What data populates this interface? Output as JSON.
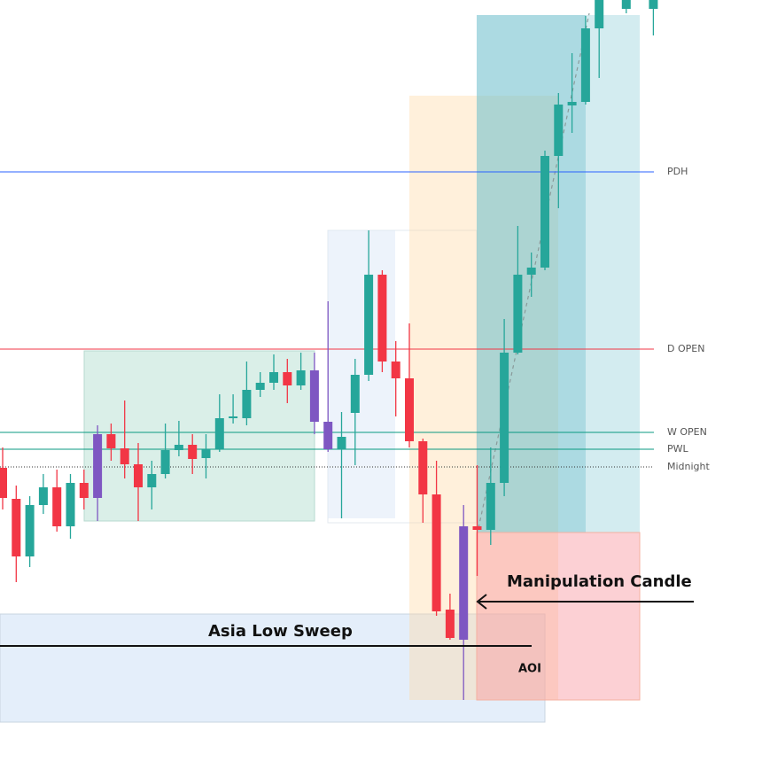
{
  "chart_data": {
    "type": "candlestick",
    "ylim": [
      0,
      860
    ],
    "open": [
      332,
      297,
      232,
      290,
      310,
      266,
      315,
      298,
      370,
      354,
      336,
      310,
      325,
      352,
      358,
      343,
      353,
      388,
      388,
      420,
      428,
      440,
      425,
      442,
      384,
      353,
      394,
      437,
      550,
      452,
      433,
      362,
      302,
      172,
      138,
      266,
      262,
      315,
      462,
      550,
      558,
      684,
      741,
      745,
      828,
      null,
      850,
      null,
      850
    ],
    "high": [
      355,
      312,
      300,
      325,
      330,
      325,
      330,
      380,
      382,
      408,
      360,
      340,
      382,
      385,
      370,
      370,
      415,
      415,
      452,
      440,
      460,
      455,
      462,
      462,
      520,
      395,
      455,
      600,
      555,
      475,
      495,
      365,
      340,
      190,
      290,
      335,
      355,
      500,
      605,
      575,
      690,
      755,
      800,
      842,
      860,
      null,
      860,
      null,
      860
    ],
    "low": [
      285,
      203,
      220,
      280,
      260,
      252,
      285,
      272,
      340,
      320,
      272,
      285,
      320,
      345,
      325,
      320,
      350,
      382,
      380,
      412,
      420,
      405,
      420,
      370,
      350,
      275,
      335,
      430,
      440,
      390,
      355,
      270,
      165,
      138,
      70,
      210,
      245,
      300,
      460,
      525,
      555,
      625,
      710,
      742,
      772,
      null,
      845,
      null,
      820
    ],
    "close": [
      298,
      232,
      290,
      310,
      266,
      315,
      298,
      370,
      354,
      336,
      310,
      325,
      352,
      358,
      342,
      353,
      388,
      390,
      420,
      428,
      440,
      425,
      442,
      384,
      353,
      367,
      437,
      550,
      452,
      433,
      362,
      302,
      170,
      140,
      266,
      262,
      315,
      462,
      550,
      558,
      684,
      742,
      745,
      828,
      860,
      null,
      860,
      null,
      860
    ],
    "colors": [
      "#f23645",
      "#f23645",
      "#26a69a",
      "#26a69a",
      "#f23645",
      "#26a69a",
      "#f23645",
      "#7e57c2",
      "#f23645",
      "#f23645",
      "#f23645",
      "#26a69a",
      "#26a69a",
      "#26a69a",
      "#f23645",
      "#26a69a",
      "#26a69a",
      "#26a69a",
      "#26a69a",
      "#26a69a",
      "#26a69a",
      "#f23645",
      "#26a69a",
      "#7e57c2",
      "#7e57c2",
      "#26a69a",
      "#26a69a",
      "#26a69a",
      "#f23645",
      "#f23645",
      "#f23645",
      "#f23645",
      "#f23645",
      "#f23645",
      "#7e57c2",
      "#f23645",
      "#26a69a",
      "#26a69a",
      "#26a69a",
      "#26a69a",
      "#26a69a",
      "#26a69a",
      "#26a69a",
      "#26a69a",
      "#26a69a",
      null,
      "#26a69a",
      null,
      "#26a69a"
    ],
    "levels": [
      {
        "label": "PDH",
        "value": 666,
        "color": "#2962ff",
        "dash": false
      },
      {
        "label": "D OPEN",
        "value": 466,
        "color": "#f23645",
        "dash": false
      },
      {
        "label": "W OPEN",
        "value": 372,
        "color": "#089981",
        "dash": false
      },
      {
        "label": "PWL",
        "value": 353,
        "color": "#089981",
        "dash": false
      },
      {
        "label": "Midnight",
        "value": 333,
        "color": "#333333",
        "dash": true
      }
    ],
    "annotations": [
      "Manipulation Candle",
      "Asia Low Sweep",
      "AOI"
    ]
  }
}
